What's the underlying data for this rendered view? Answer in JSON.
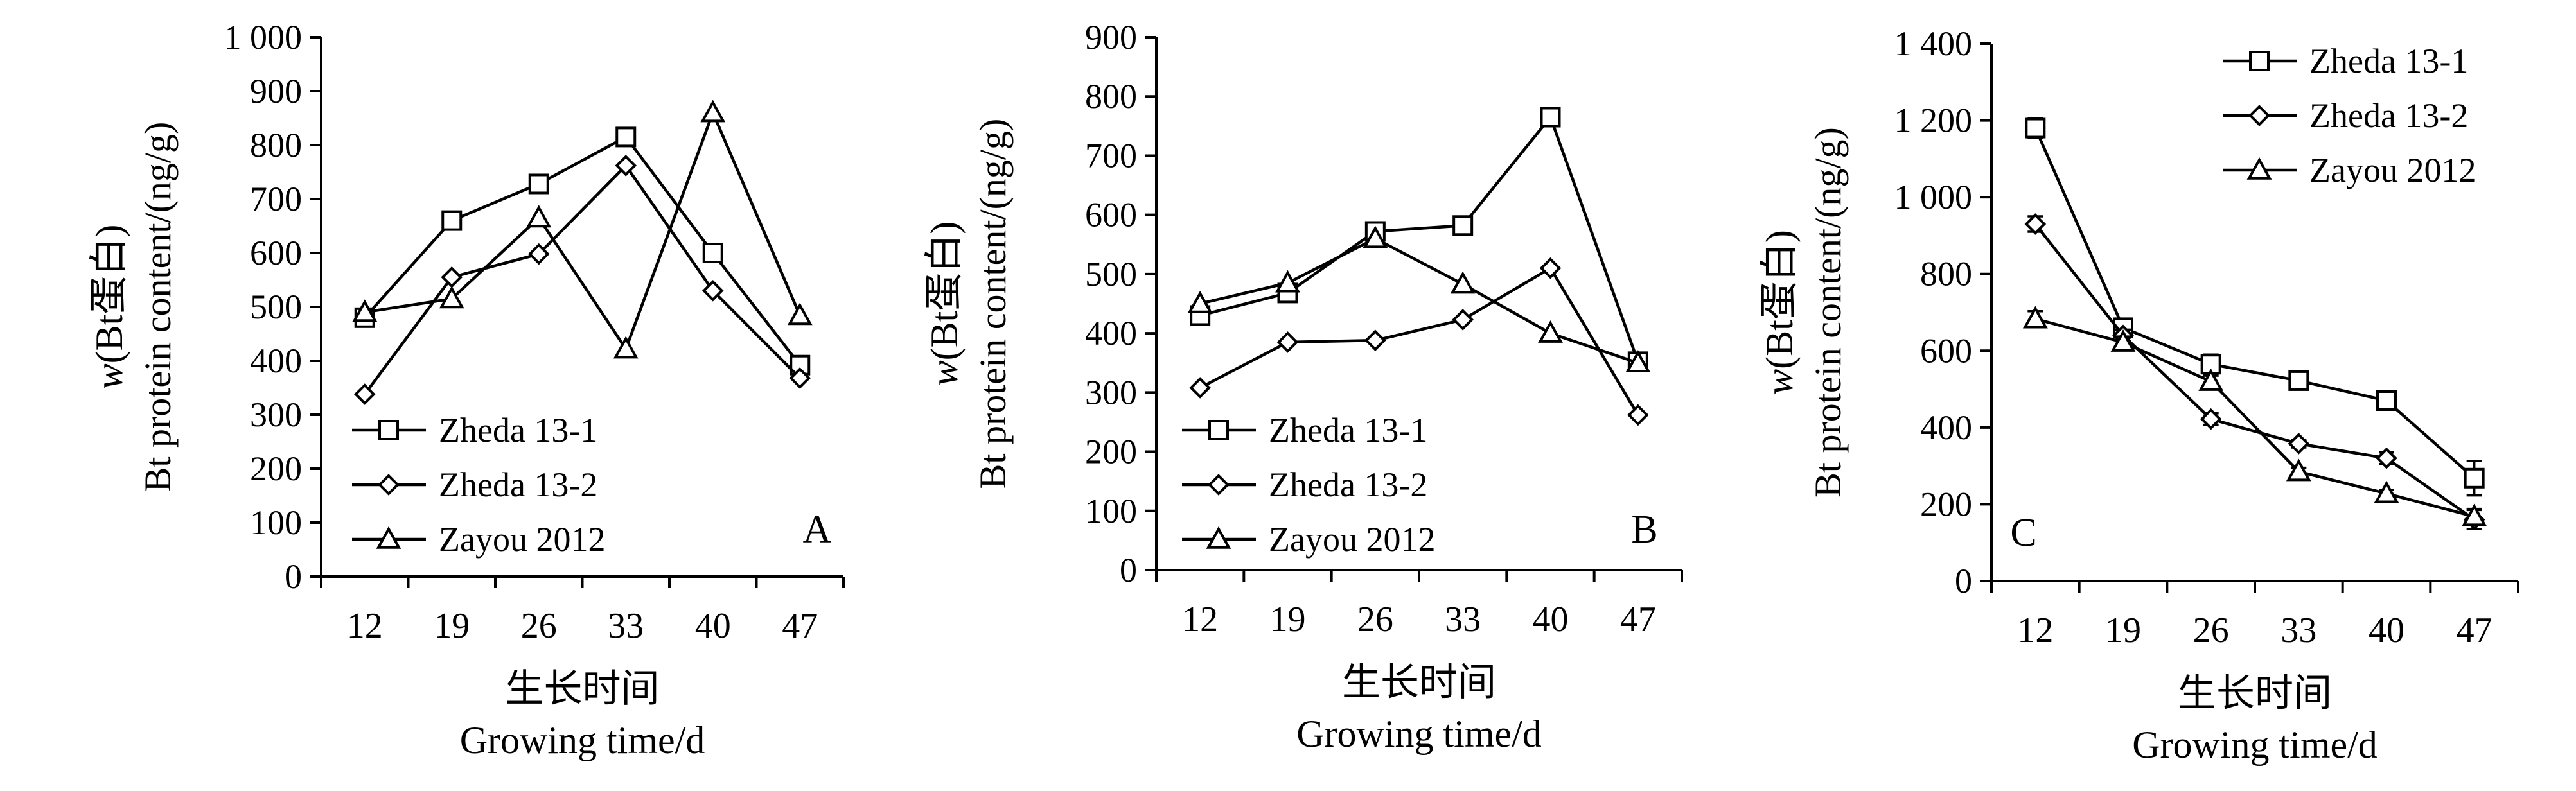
{
  "chart_data": [
    {
      "type": "line",
      "panel_label": "A",
      "ylabel_line1": "w(Bt蛋白)",
      "ylabel_line2": "Bt protein content/(ng/g)",
      "xlabel_line1": "生长时间",
      "xlabel_line2": "Growing time/d",
      "x": [
        12,
        19,
        26,
        33,
        40,
        47
      ],
      "ylim": [
        0,
        1000
      ],
      "yticks": [
        0,
        100,
        200,
        300,
        400,
        500,
        600,
        700,
        800,
        900,
        1000
      ],
      "ytick_labels": [
        "0",
        "100",
        "200",
        "300",
        "400",
        "500",
        "600",
        "700",
        "800",
        "900",
        "1 000"
      ],
      "legend_position": "bottom-left",
      "series": [
        {
          "name": "Zheda 13-1",
          "marker": "square",
          "values": [
            480,
            660,
            728,
            815,
            600,
            392
          ]
        },
        {
          "name": "Zheda 13-2",
          "marker": "diamond",
          "values": [
            338,
            555,
            598,
            762,
            530,
            368
          ]
        },
        {
          "name": "Zayou 2012",
          "marker": "triangle",
          "values": [
            490,
            515,
            665,
            422,
            860,
            484
          ]
        }
      ]
    },
    {
      "type": "line",
      "panel_label": "B",
      "ylabel_line1": "w(Bt蛋白)",
      "ylabel_line2": "Bt protein content/(ng/g)",
      "xlabel_line1": "生长时间",
      "xlabel_line2": "Growing time/d",
      "x": [
        12,
        19,
        26,
        33,
        40,
        47
      ],
      "ylim": [
        0,
        900
      ],
      "yticks": [
        0,
        100,
        200,
        300,
        400,
        500,
        600,
        700,
        800,
        900
      ],
      "ytick_labels": [
        "0",
        "100",
        "200",
        "300",
        "400",
        "500",
        "600",
        "700",
        "800",
        "900"
      ],
      "legend_position": "bottom-left",
      "series": [
        {
          "name": "Zheda 13-1",
          "marker": "square",
          "values": [
            430,
            468,
            572,
            582,
            765,
            352
          ]
        },
        {
          "name": "Zheda 13-2",
          "marker": "diamond",
          "values": [
            308,
            385,
            388,
            423,
            510,
            262
          ]
        },
        {
          "name": "Zayou 2012",
          "marker": "triangle",
          "values": [
            450,
            485,
            560,
            483,
            400,
            350
          ]
        }
      ]
    },
    {
      "type": "line",
      "panel_label": "C",
      "ylabel_line1": "w(Bt蛋白)",
      "ylabel_line2": "Bt protein content/(ng/g)",
      "xlabel_line1": "生长时间",
      "xlabel_line2": "Growing time/d",
      "x": [
        12,
        19,
        26,
        33,
        40,
        47
      ],
      "ylim": [
        0,
        1400
      ],
      "yticks": [
        0,
        200,
        400,
        600,
        800,
        1000,
        1200,
        1400
      ],
      "ytick_labels": [
        "0",
        "200",
        "400",
        "600",
        "800",
        "1 000",
        "1 200",
        "1 400"
      ],
      "legend_position": "top-right",
      "series": [
        {
          "name": "Zheda 13-1",
          "marker": "square",
          "values": [
            1180,
            660,
            565,
            522,
            470,
            268
          ],
          "errors": [
            25,
            20,
            25,
            15,
            20,
            45
          ]
        },
        {
          "name": "Zheda 13-2",
          "marker": "diamond",
          "values": [
            930,
            640,
            422,
            358,
            320,
            160
          ],
          "errors": [
            20,
            15,
            15,
            10,
            15,
            25
          ]
        },
        {
          "name": "Zayou 2012",
          "marker": "triangle",
          "values": [
            683,
            622,
            520,
            285,
            228,
            168
          ],
          "errors": [
            20,
            15,
            15,
            10,
            10,
            20
          ]
        }
      ]
    }
  ]
}
